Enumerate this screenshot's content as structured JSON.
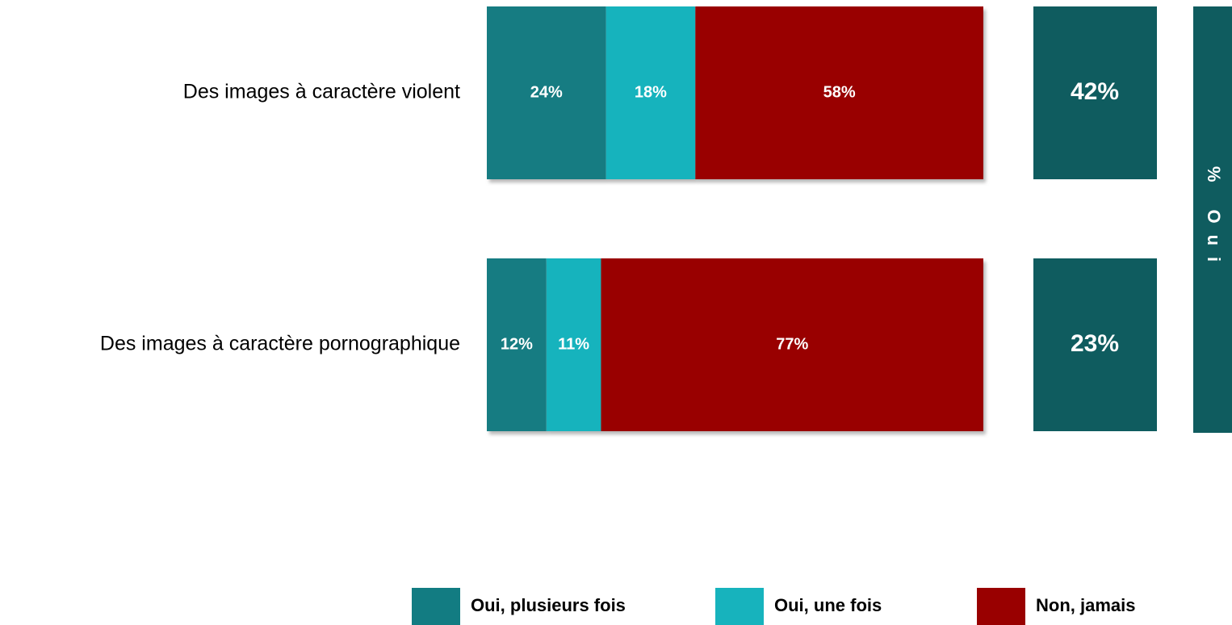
{
  "chart_data": {
    "type": "stacked-bar",
    "categories": [
      "Des images à caractère violent",
      "Des images à caractère pornographique"
    ],
    "series": [
      {
        "name": "Oui, plusieurs fois",
        "color": "#127c82",
        "values": [
          24,
          12
        ],
        "value_labels": [
          "24%",
          "12%"
        ]
      },
      {
        "name": "Oui, une fois",
        "color": "#17b3bd",
        "values": [
          18,
          11
        ],
        "value_labels": [
          "18%",
          "11%"
        ]
      },
      {
        "name": "Non, jamais",
        "color": "#990000",
        "values": [
          58,
          77
        ],
        "value_labels": [
          "58%",
          "77%"
        ]
      }
    ],
    "totals": {
      "label": "% Oui",
      "color": "#0f5c5f",
      "values": [
        42,
        23
      ],
      "value_labels": [
        "42%",
        "23%"
      ]
    }
  }
}
